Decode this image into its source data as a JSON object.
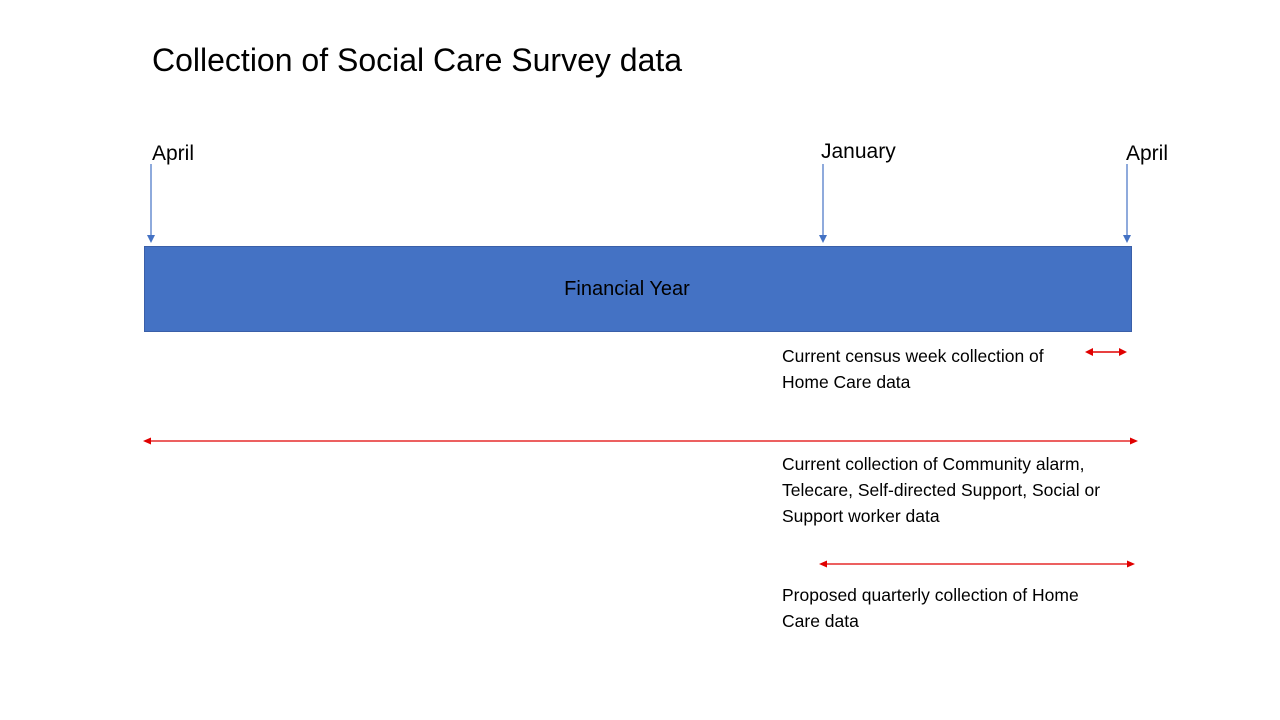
{
  "title": "Collection of Social Care Survey data",
  "markers": {
    "april_start": "April",
    "january": "January",
    "april_end": "April"
  },
  "financial_year_label": "Financial Year",
  "notes": {
    "census_week": {
      "line1": "Current census week collection of",
      "line2": "Home Care data"
    },
    "current_collection": {
      "line1": "Current collection of Community alarm,",
      "line2": "Telecare, Self-directed Support, Social or",
      "line3": "Support worker data"
    },
    "proposed_quarterly": {
      "line1": "Proposed quarterly collection of Home",
      "line2": "Care data"
    }
  },
  "colors": {
    "bar_fill": "#4472c4",
    "marker_arrow": "#4472c4",
    "range_arrow": "#e00000"
  },
  "icons": [
    "down-arrow",
    "double-headed-arrow"
  ]
}
